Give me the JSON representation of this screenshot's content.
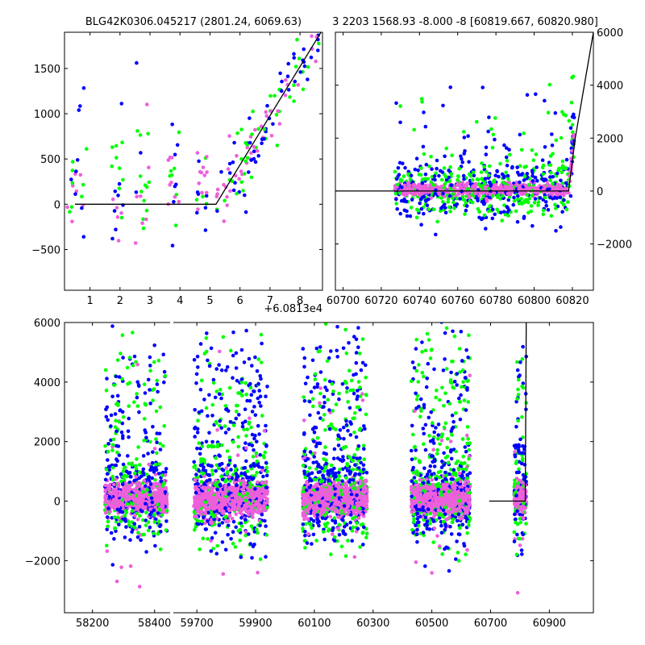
{
  "chart_data": [
    {
      "type": "scatter",
      "title": "BLG42K0306.045217 (2801.24, 6069.63)",
      "offset_label": "+6.0813e4",
      "xlim": [
        0.15,
        8.75
      ],
      "ylim": [
        -950,
        1900
      ],
      "xticks": [
        1,
        2,
        3,
        4,
        5,
        6,
        7,
        8
      ],
      "xtick_labels": [
        "1",
        "2",
        "3",
        "4",
        "5",
        "6",
        "7",
        "8"
      ],
      "yticks": [
        -500,
        0,
        500,
        1000,
        1500
      ],
      "ytick_labels": [
        "−500",
        "0",
        "500",
        "1000",
        "1500"
      ],
      "model_line": {
        "x": [
          0.5,
          5.2,
          8.7
        ],
        "y": [
          0,
          0,
          1900
        ]
      },
      "series": [
        {
          "color": "#00ff00",
          "role": "green points"
        },
        {
          "color": "#0000ff",
          "role": "blue points"
        },
        {
          "color": "#ee5fdb",
          "role": "magenta points"
        }
      ]
    },
    {
      "type": "scatter",
      "title": "3 2203 1568.93 -8.000 -8 [60819.667, 60820.980]",
      "xlim": [
        60696,
        60831
      ],
      "ylim": [
        -3750,
        6000
      ],
      "xticks": [
        60700,
        60720,
        60740,
        60760,
        60780,
        60800,
        60820
      ],
      "xtick_labels": [
        "60700",
        "60720",
        "60740",
        "60760",
        "60780",
        "60800",
        "60820"
      ],
      "yticks": [
        -2000,
        0,
        2000,
        4000,
        6000
      ],
      "ytick_labels": [
        "−2000",
        "0",
        "2000",
        "4000",
        "6000"
      ],
      "yaxis_side": "right",
      "model_line": {
        "x": [
          60696,
          60818,
          60821.5,
          60831
        ],
        "y": [
          0,
          0,
          2000,
          6000
        ]
      },
      "series": [
        {
          "color": "#00ff00",
          "role": "green points"
        },
        {
          "color": "#0000ff",
          "role": "blue points"
        },
        {
          "color": "#ee5fdb",
          "role": "magenta points"
        }
      ]
    },
    {
      "type": "scatter",
      "title": "",
      "xlim": [
        58110,
        61050
      ],
      "ylim": [
        -3750,
        6000
      ],
      "xaxis_broken": true,
      "xticks": [
        58200,
        58400,
        59700,
        59900,
        60100,
        60300,
        60500,
        60700,
        60900
      ],
      "xtick_labels": [
        "58200",
        "58400",
        "59700",
        "59900",
        "60100",
        "60300",
        "60500",
        "60700",
        "60900"
      ],
      "yticks": [
        -2000,
        0,
        2000,
        4000,
        6000
      ],
      "ytick_labels": [
        "−2000",
        "0",
        "2000",
        "4000",
        "6000"
      ],
      "seasons_px": [],
      "model_line": {
        "x": [
          60695,
          60818,
          60821.5
        ],
        "y": [
          0,
          0,
          6000
        ]
      },
      "series": [
        {
          "color": "#00ff00",
          "role": "green points"
        },
        {
          "color": "#0000ff",
          "role": "blue points"
        },
        {
          "color": "#ee5fdb",
          "role": "magenta points"
        }
      ]
    }
  ]
}
